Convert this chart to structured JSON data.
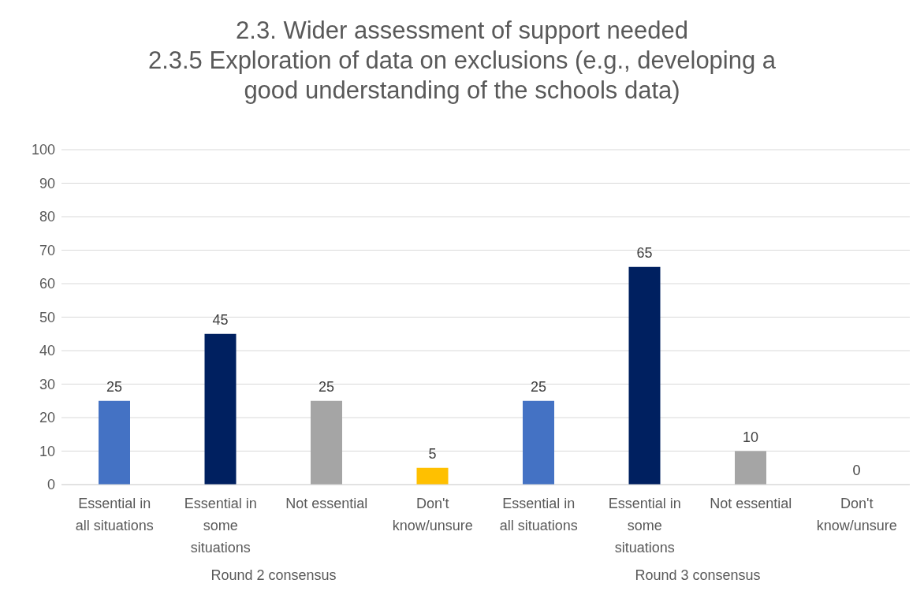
{
  "chart_data": {
    "type": "bar",
    "title": "2.3. Wider assessment of support needed",
    "subtitle": "2.3.5 Exploration of data on exclusions (e.g., developing a good understanding of the schools data)",
    "categories": [
      "Essential in all situations",
      "Essential in some situations",
      "Not essential",
      "Don't know/unsure",
      "Essential in all situations",
      "Essential in some situations",
      "Not essential",
      "Don't know/unsure"
    ],
    "values": [
      25,
      45,
      25,
      5,
      25,
      65,
      10,
      0
    ],
    "colors": [
      "#4472c4",
      "#002060",
      "#a5a5a5",
      "#ffc000",
      "#4472c4",
      "#002060",
      "#a5a5a5",
      "#ffc000"
    ],
    "ylim": [
      0,
      100
    ],
    "yticks": [
      0,
      10,
      20,
      30,
      40,
      50,
      60,
      70,
      80,
      90,
      100
    ],
    "grid": "y",
    "data_labels": true,
    "legend": false,
    "annotations": [
      "Round 2 consensus",
      "Round 3 consensus"
    ]
  }
}
